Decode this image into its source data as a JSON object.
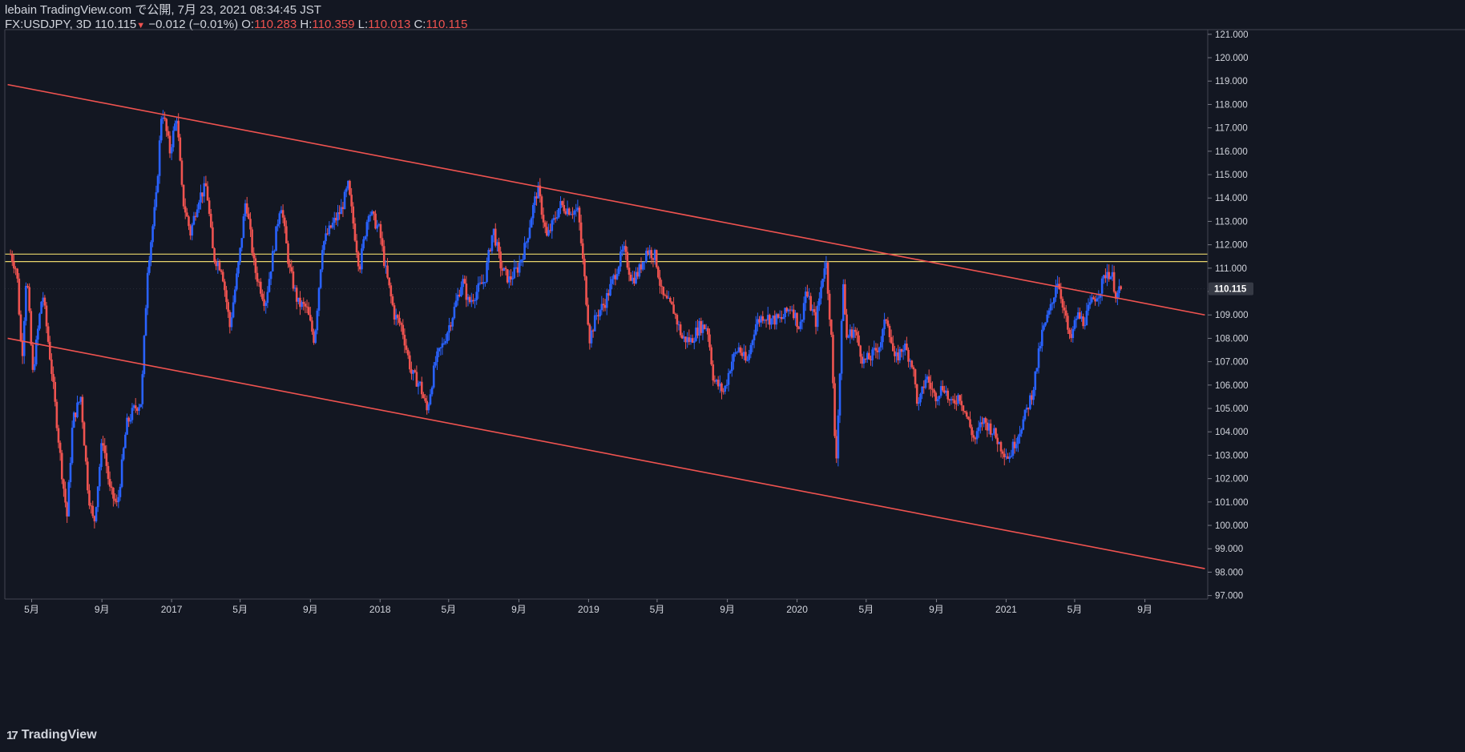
{
  "header": {
    "publish_line": "lebain TradingView.com で公開, 7月 23, 2021 08:34:45 JST",
    "symbol": "FX:USDJPY, 3D",
    "last": "110.115",
    "down_arrow": "▼",
    "change": "−0.012 (−0.01%)",
    "o_label": "O:",
    "o_value": "110.283",
    "h_label": "H:",
    "h_value": "110.359",
    "l_label": "L:",
    "l_value": "110.013",
    "c_label": "C:",
    "c_value": "110.115"
  },
  "brand": {
    "name": "TradingView",
    "mark": "17"
  },
  "colors": {
    "background": "#131722",
    "up": "#2962ff",
    "down": "#ef5350",
    "trendline": "#f05350",
    "zone": "#e9d66b",
    "axis_text": "#d1d4dc",
    "price_tag_bg": "#363a45"
  },
  "chart_data": {
    "type": "candlestick",
    "symbol": "FX:USDJPY",
    "timeframe": "3D",
    "ylim": [
      96.85,
      121.2
    ],
    "y_ticks": [
      "97.000",
      "98.000",
      "99.000",
      "100.000",
      "101.000",
      "102.000",
      "103.000",
      "104.000",
      "105.000",
      "106.000",
      "107.000",
      "108.000",
      "109.000",
      "110.000",
      "111.000",
      "112.000",
      "113.000",
      "114.000",
      "115.000",
      "116.000",
      "117.000",
      "118.000",
      "119.000",
      "120.000",
      "121.000"
    ],
    "x_ticks": [
      {
        "label": "5月",
        "date": "2016-05-01"
      },
      {
        "label": "9月",
        "date": "2016-09-01"
      },
      {
        "label": "2017",
        "date": "2017-01-01"
      },
      {
        "label": "5月",
        "date": "2017-05-01"
      },
      {
        "label": "9月",
        "date": "2017-09-01"
      },
      {
        "label": "2018",
        "date": "2018-01-01"
      },
      {
        "label": "5月",
        "date": "2018-05-01"
      },
      {
        "label": "9月",
        "date": "2018-09-01"
      },
      {
        "label": "2019",
        "date": "2019-01-01"
      },
      {
        "label": "5月",
        "date": "2019-05-01"
      },
      {
        "label": "9月",
        "date": "2019-09-01"
      },
      {
        "label": "2020",
        "date": "2020-01-01"
      },
      {
        "label": "5月",
        "date": "2020-05-01"
      },
      {
        "label": "9月",
        "date": "2020-09-01"
      },
      {
        "label": "2021",
        "date": "2021-01-01"
      },
      {
        "label": "5月",
        "date": "2021-05-01"
      },
      {
        "label": "9月",
        "date": "2021-09-01"
      }
    ],
    "current_price": "110.115",
    "zone": {
      "low": 111.28,
      "high": 111.6
    },
    "trendlines": [
      {
        "from": {
          "date": "2016-03-20",
          "price": 118.85
        },
        "to": {
          "date": "2021-12-15",
          "price": 109.0
        }
      },
      {
        "from": {
          "date": "2016-03-20",
          "price": 108.0
        },
        "to": {
          "date": "2021-12-15",
          "price": 98.15
        }
      }
    ],
    "path": [
      [
        "2016-03-25",
        111.6
      ],
      [
        "2016-04-05",
        110.9
      ],
      [
        "2016-04-14",
        107.0
      ],
      [
        "2016-04-22",
        110.9
      ],
      [
        "2016-05-03",
        106.5
      ],
      [
        "2016-05-20",
        110.0
      ],
      [
        "2016-06-05",
        106.6
      ],
      [
        "2016-06-24",
        102.0
      ],
      [
        "2016-07-02",
        100.4
      ],
      [
        "2016-07-12",
        104.5
      ],
      [
        "2016-07-26",
        105.5
      ],
      [
        "2016-08-08",
        101.4
      ],
      [
        "2016-08-18",
        100.0
      ],
      [
        "2016-09-02",
        103.8
      ],
      [
        "2016-09-15",
        101.5
      ],
      [
        "2016-09-28",
        100.8
      ],
      [
        "2016-10-14",
        104.3
      ],
      [
        "2016-10-28",
        105.0
      ],
      [
        "2016-11-09",
        105.3
      ],
      [
        "2016-11-20",
        111.0
      ],
      [
        "2016-12-05",
        114.0
      ],
      [
        "2016-12-15",
        117.9
      ],
      [
        "2016-12-29",
        116.0
      ],
      [
        "2017-01-10",
        117.5
      ],
      [
        "2017-01-20",
        114.0
      ],
      [
        "2017-02-03",
        112.5
      ],
      [
        "2017-02-17",
        114.0
      ],
      [
        "2017-03-03",
        114.5
      ],
      [
        "2017-03-15",
        111.5
      ],
      [
        "2017-03-30",
        111.0
      ],
      [
        "2017-04-13",
        108.5
      ],
      [
        "2017-04-30",
        111.5
      ],
      [
        "2017-05-11",
        114.0
      ],
      [
        "2017-05-26",
        111.0
      ],
      [
        "2017-06-14",
        109.5
      ],
      [
        "2017-06-30",
        112.0
      ],
      [
        "2017-07-11",
        113.9
      ],
      [
        "2017-07-26",
        111.0
      ],
      [
        "2017-08-10",
        109.5
      ],
      [
        "2017-08-25",
        109.3
      ],
      [
        "2017-09-08",
        107.9
      ],
      [
        "2017-09-22",
        112.0
      ],
      [
        "2017-10-06",
        112.7
      ],
      [
        "2017-10-25",
        113.5
      ],
      [
        "2017-11-06",
        114.5
      ],
      [
        "2017-11-26",
        111.0
      ],
      [
        "2017-12-12",
        113.5
      ],
      [
        "2017-12-31",
        112.6
      ],
      [
        "2018-01-10",
        111.0
      ],
      [
        "2018-01-26",
        109.0
      ],
      [
        "2018-02-08",
        108.5
      ],
      [
        "2018-02-25",
        106.5
      ],
      [
        "2018-03-12",
        106.0
      ],
      [
        "2018-03-24",
        104.9
      ],
      [
        "2018-04-08",
        107.0
      ],
      [
        "2018-04-22",
        107.8
      ],
      [
        "2018-05-08",
        109.0
      ],
      [
        "2018-05-25",
        110.5
      ],
      [
        "2018-06-05",
        109.5
      ],
      [
        "2018-06-19",
        110.0
      ],
      [
        "2018-07-03",
        110.5
      ],
      [
        "2018-07-18",
        112.7
      ],
      [
        "2018-08-01",
        111.0
      ],
      [
        "2018-08-15",
        110.5
      ],
      [
        "2018-08-30",
        111.0
      ],
      [
        "2018-09-13",
        112.0
      ],
      [
        "2018-09-25",
        113.5
      ],
      [
        "2018-10-04",
        114.4
      ],
      [
        "2018-10-20",
        112.3
      ],
      [
        "2018-11-01",
        113.0
      ],
      [
        "2018-11-12",
        113.7
      ],
      [
        "2018-11-28",
        113.5
      ],
      [
        "2018-12-14",
        113.4
      ],
      [
        "2018-12-25",
        110.5
      ],
      [
        "2019-01-03",
        108.0
      ],
      [
        "2019-01-15",
        109.0
      ],
      [
        "2019-01-29",
        109.5
      ],
      [
        "2019-02-13",
        110.5
      ],
      [
        "2019-03-03",
        111.8
      ],
      [
        "2019-03-18",
        110.5
      ],
      [
        "2019-03-29",
        110.8
      ],
      [
        "2019-04-13",
        111.8
      ],
      [
        "2019-04-28",
        111.5
      ],
      [
        "2019-05-10",
        109.8
      ],
      [
        "2019-05-30",
        109.2
      ],
      [
        "2019-06-14",
        108.0
      ],
      [
        "2019-06-29",
        107.9
      ],
      [
        "2019-07-14",
        108.5
      ],
      [
        "2019-07-28",
        108.5
      ],
      [
        "2019-08-08",
        106.2
      ],
      [
        "2019-08-26",
        105.7
      ],
      [
        "2019-09-08",
        107.0
      ],
      [
        "2019-09-21",
        107.6
      ],
      [
        "2019-10-05",
        106.9
      ],
      [
        "2019-10-20",
        108.6
      ],
      [
        "2019-11-03",
        109.0
      ],
      [
        "2019-11-17",
        108.8
      ],
      [
        "2019-12-04",
        108.8
      ],
      [
        "2019-12-22",
        109.4
      ],
      [
        "2020-01-06",
        108.4
      ],
      [
        "2020-01-16",
        110.0
      ],
      [
        "2020-02-03",
        108.7
      ],
      [
        "2020-02-20",
        111.5
      ],
      [
        "2020-03-01",
        108.0
      ],
      [
        "2020-03-09",
        102.5
      ],
      [
        "2020-03-16",
        106.5
      ],
      [
        "2020-03-22",
        110.5
      ],
      [
        "2020-03-27",
        108.0
      ],
      [
        "2020-04-10",
        108.4
      ],
      [
        "2020-04-26",
        107.0
      ],
      [
        "2020-05-10",
        107.2
      ],
      [
        "2020-05-26",
        107.8
      ],
      [
        "2020-06-06",
        109.0
      ],
      [
        "2020-06-20",
        107.0
      ],
      [
        "2020-07-06",
        107.7
      ],
      [
        "2020-07-21",
        106.9
      ],
      [
        "2020-07-31",
        105.0
      ],
      [
        "2020-08-14",
        106.4
      ],
      [
        "2020-08-29",
        105.5
      ],
      [
        "2020-09-14",
        106.0
      ],
      [
        "2020-09-26",
        105.1
      ],
      [
        "2020-10-11",
        105.6
      ],
      [
        "2020-10-26",
        104.5
      ],
      [
        "2020-11-07",
        103.6
      ],
      [
        "2020-11-21",
        104.5
      ],
      [
        "2020-12-07",
        104.1
      ],
      [
        "2020-12-22",
        103.4
      ],
      [
        "2021-01-06",
        102.9
      ],
      [
        "2021-01-20",
        103.8
      ],
      [
        "2021-02-02",
        104.6
      ],
      [
        "2021-02-17",
        105.8
      ],
      [
        "2021-03-05",
        108.2
      ],
      [
        "2021-03-23",
        109.5
      ],
      [
        "2021-03-31",
        110.6
      ],
      [
        "2021-04-12",
        109.3
      ],
      [
        "2021-04-23",
        107.8
      ],
      [
        "2021-05-05",
        109.0
      ],
      [
        "2021-05-17",
        108.7
      ],
      [
        "2021-06-01",
        109.6
      ],
      [
        "2021-06-15",
        110.1
      ],
      [
        "2021-06-26",
        110.9
      ],
      [
        "2021-07-06",
        110.6
      ],
      [
        "2021-07-13",
        109.8
      ],
      [
        "2021-07-22",
        110.115
      ]
    ]
  }
}
